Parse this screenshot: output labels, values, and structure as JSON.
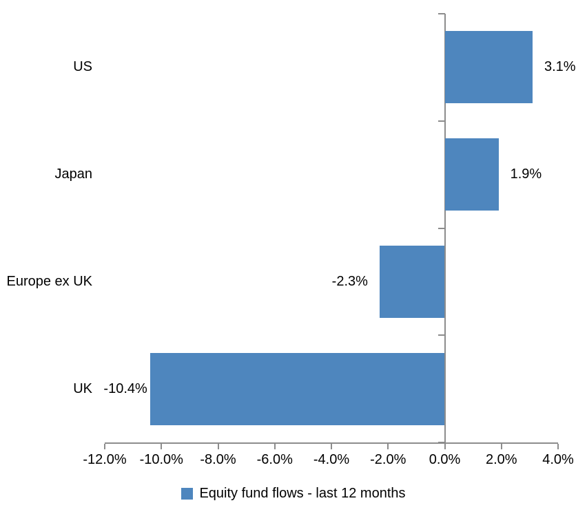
{
  "chart_data": {
    "type": "bar",
    "orientation": "horizontal",
    "title": "",
    "categories": [
      "US",
      "Japan",
      "Europe ex UK",
      "UK"
    ],
    "values": [
      3.1,
      1.9,
      -2.3,
      -10.4
    ],
    "data_labels": [
      "3.1%",
      "1.9%",
      "-2.3%",
      "-10.4%"
    ],
    "series_name": "Equity fund flows - last 12 months",
    "x_tick_labels": [
      "-12.0%",
      "-10.0%",
      "-8.0%",
      "-6.0%",
      "-4.0%",
      "-2.0%",
      "0.0%",
      "2.0%",
      "4.0%"
    ],
    "x_tick_values": [
      -12,
      -10,
      -8,
      -6,
      -4,
      -2,
      0,
      2,
      4
    ],
    "xlim": [
      -12,
      4
    ],
    "grid": false,
    "legend_position": "bottom",
    "bar_color": "#4e86be",
    "axis_color": "#8c8c8c",
    "text_color": "#000000"
  }
}
